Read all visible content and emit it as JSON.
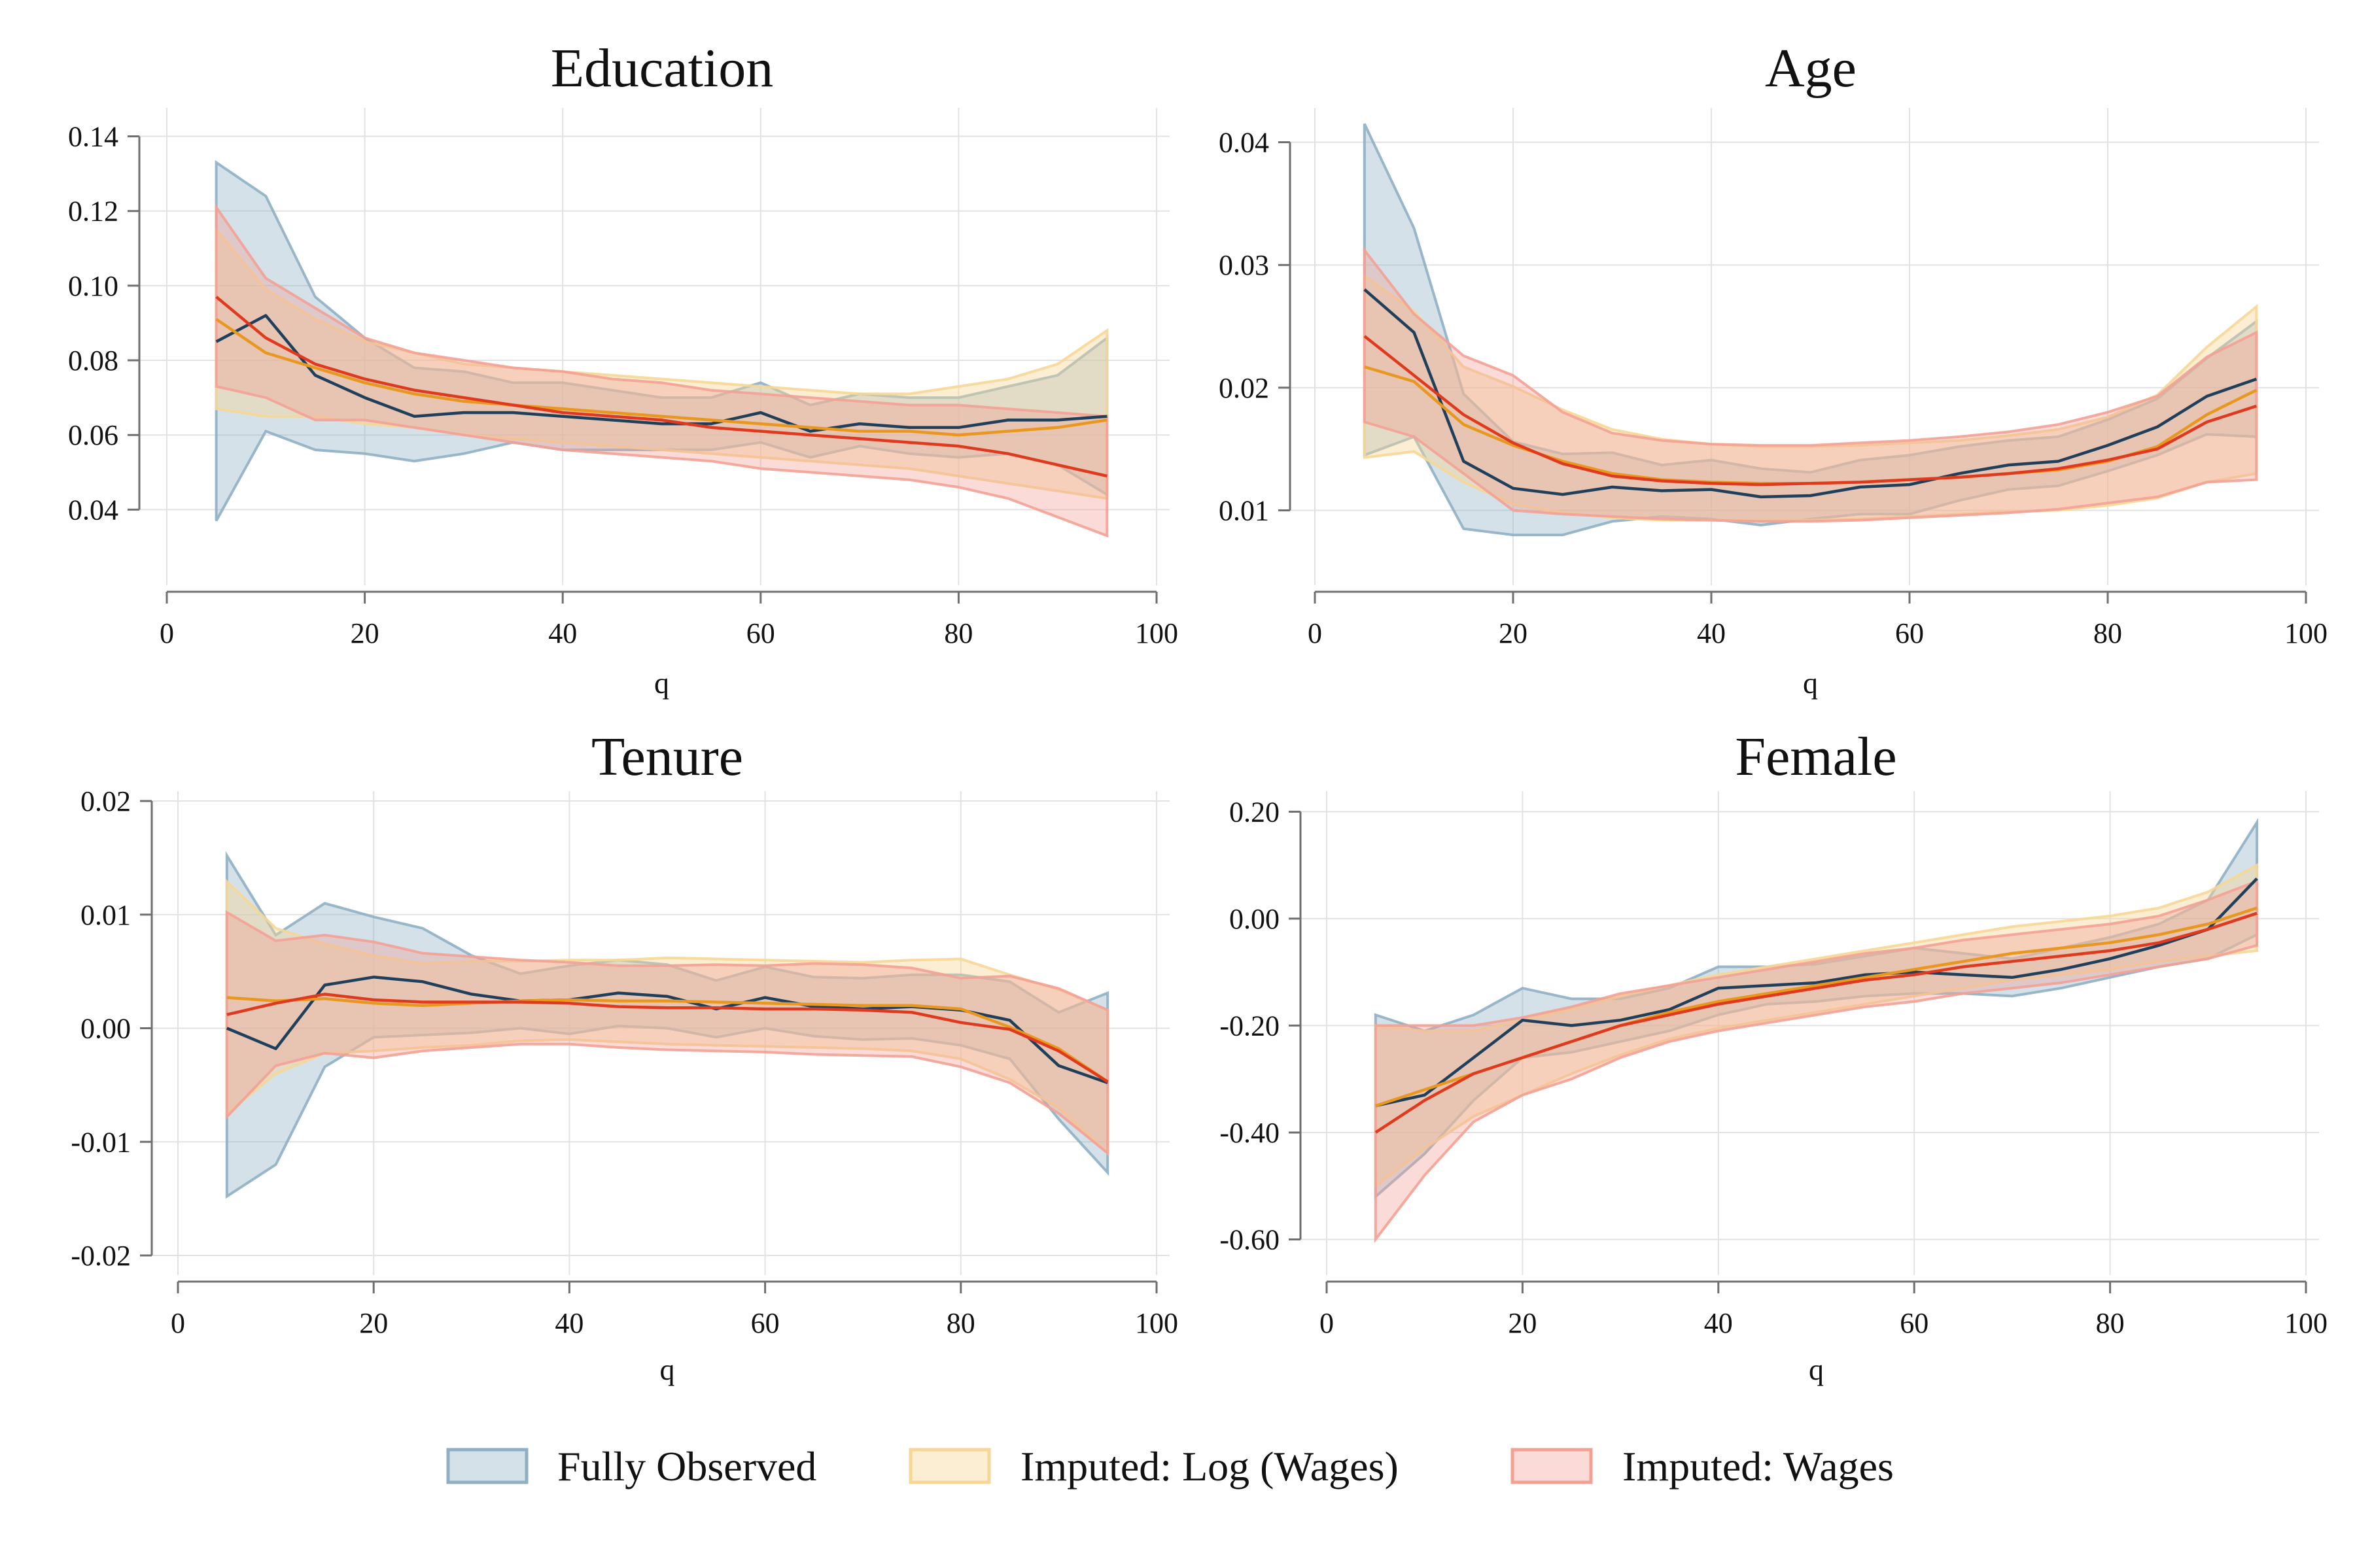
{
  "colors": {
    "fully_observed_line": "#1f3f5a",
    "fully_observed_band": "#8fb0c4",
    "imputed_log_line": "#e8981f",
    "imputed_log_band": "#f6d796",
    "imputed_wages_line": "#e03a1e",
    "imputed_wages_band": "#f3a195",
    "grid": "#e2e2e2",
    "axis": "#6f6f6f"
  },
  "legend": {
    "position": "bottom-center",
    "items": [
      {
        "label": "Fully Observed",
        "key": "fully_observed"
      },
      {
        "label": "Imputed: Log (Wages)",
        "key": "imputed_log"
      },
      {
        "label": "Imputed: Wages",
        "key": "imputed_wages"
      }
    ]
  },
  "chart_data": [
    {
      "type": "line",
      "title": "Education",
      "xlabel": "q",
      "ylabel": "",
      "xlim": [
        0,
        100
      ],
      "ylim": [
        0.025,
        0.145
      ],
      "xticks": [
        "0",
        "20",
        "40",
        "60",
        "80",
        "100"
      ],
      "yticks": [
        "0.04",
        "0.06",
        "0.08",
        "0.10",
        "0.12",
        "0.14"
      ],
      "grid": true,
      "x": [
        5,
        10,
        15,
        20,
        25,
        30,
        35,
        40,
        45,
        50,
        55,
        60,
        65,
        70,
        75,
        80,
        85,
        90,
        95
      ],
      "series": [
        {
          "key": "fully_observed",
          "name": "Fully Observed",
          "values": [
            0.085,
            0.092,
            0.076,
            0.07,
            0.065,
            0.066,
            0.066,
            0.065,
            0.064,
            0.063,
            0.063,
            0.066,
            0.061,
            0.063,
            0.062,
            0.062,
            0.064,
            0.064,
            0.065
          ],
          "lower": [
            0.037,
            0.061,
            0.056,
            0.055,
            0.053,
            0.055,
            0.058,
            0.056,
            0.056,
            0.056,
            0.056,
            0.058,
            0.054,
            0.057,
            0.055,
            0.054,
            0.055,
            0.052,
            0.044
          ],
          "upper": [
            0.133,
            0.124,
            0.097,
            0.086,
            0.078,
            0.077,
            0.074,
            0.074,
            0.072,
            0.07,
            0.07,
            0.074,
            0.068,
            0.071,
            0.07,
            0.07,
            0.073,
            0.076,
            0.086
          ]
        },
        {
          "key": "imputed_log",
          "name": "Imputed: Log (Wages)",
          "values": [
            0.091,
            0.082,
            0.078,
            0.074,
            0.071,
            0.069,
            0.068,
            0.067,
            0.066,
            0.065,
            0.064,
            0.063,
            0.062,
            0.061,
            0.061,
            0.06,
            0.061,
            0.062,
            0.064
          ],
          "lower": [
            0.067,
            0.065,
            0.065,
            0.063,
            0.062,
            0.06,
            0.059,
            0.058,
            0.057,
            0.056,
            0.055,
            0.054,
            0.053,
            0.052,
            0.051,
            0.049,
            0.047,
            0.045,
            0.043
          ],
          "upper": [
            0.115,
            0.099,
            0.091,
            0.085,
            0.082,
            0.079,
            0.078,
            0.077,
            0.076,
            0.075,
            0.074,
            0.073,
            0.072,
            0.071,
            0.071,
            0.073,
            0.075,
            0.079,
            0.088
          ]
        },
        {
          "key": "imputed_wages",
          "name": "Imputed: Wages",
          "values": [
            0.097,
            0.086,
            0.079,
            0.075,
            0.072,
            0.07,
            0.068,
            0.066,
            0.065,
            0.064,
            0.062,
            0.061,
            0.06,
            0.059,
            0.058,
            0.057,
            0.055,
            0.052,
            0.049
          ],
          "lower": [
            0.073,
            0.07,
            0.064,
            0.064,
            0.062,
            0.06,
            0.058,
            0.056,
            0.055,
            0.054,
            0.053,
            0.051,
            0.05,
            0.049,
            0.048,
            0.046,
            0.043,
            0.038,
            0.033
          ],
          "upper": [
            0.121,
            0.102,
            0.094,
            0.086,
            0.082,
            0.08,
            0.078,
            0.077,
            0.075,
            0.074,
            0.072,
            0.071,
            0.07,
            0.069,
            0.068,
            0.068,
            0.067,
            0.066,
            0.065
          ]
        }
      ]
    },
    {
      "type": "line",
      "title": "Age",
      "xlabel": "q",
      "ylabel": "",
      "xlim": [
        0,
        100
      ],
      "ylim": [
        0.0055,
        0.042
      ],
      "xticks": [
        "0",
        "20",
        "40",
        "60",
        "80",
        "100"
      ],
      "yticks": [
        "0.01",
        "0.02",
        "0.03",
        "0.04"
      ],
      "grid": true,
      "x": [
        5,
        10,
        15,
        20,
        25,
        30,
        35,
        40,
        45,
        50,
        55,
        60,
        65,
        70,
        75,
        80,
        85,
        90,
        95
      ],
      "series": [
        {
          "key": "fully_observed",
          "name": "Fully Observed",
          "values": [
            0.028,
            0.0245,
            0.014,
            0.0118,
            0.0113,
            0.0119,
            0.0116,
            0.0117,
            0.0111,
            0.0112,
            0.0119,
            0.0121,
            0.013,
            0.0137,
            0.014,
            0.0153,
            0.0168,
            0.0193,
            0.0207
          ],
          "lower": [
            0.0145,
            0.016,
            0.0085,
            0.008,
            0.008,
            0.0091,
            0.0095,
            0.0093,
            0.0088,
            0.0093,
            0.0097,
            0.0097,
            0.0108,
            0.0117,
            0.012,
            0.0132,
            0.0145,
            0.0162,
            0.016
          ],
          "upper": [
            0.0415,
            0.033,
            0.0195,
            0.0156,
            0.0146,
            0.0147,
            0.0137,
            0.0141,
            0.0134,
            0.0131,
            0.0141,
            0.0145,
            0.0152,
            0.0157,
            0.016,
            0.0174,
            0.0191,
            0.0224,
            0.0254
          ]
        },
        {
          "key": "imputed_log",
          "name": "Imputed: Log (Wages)",
          "values": [
            0.0217,
            0.0205,
            0.017,
            0.0153,
            0.014,
            0.013,
            0.0125,
            0.0123,
            0.0122,
            0.0122,
            0.0123,
            0.0125,
            0.0127,
            0.013,
            0.0133,
            0.014,
            0.0152,
            0.0178,
            0.0198
          ],
          "lower": [
            0.0143,
            0.0148,
            0.0123,
            0.0105,
            0.0098,
            0.0094,
            0.0092,
            0.0092,
            0.0092,
            0.0092,
            0.0093,
            0.0095,
            0.0097,
            0.0099,
            0.01,
            0.0104,
            0.011,
            0.0123,
            0.013
          ],
          "upper": [
            0.0291,
            0.0262,
            0.0217,
            0.0201,
            0.0182,
            0.0166,
            0.0158,
            0.0154,
            0.0152,
            0.0152,
            0.0153,
            0.0155,
            0.0157,
            0.0161,
            0.0166,
            0.0176,
            0.0194,
            0.0233,
            0.0266
          ]
        },
        {
          "key": "imputed_wages",
          "name": "Imputed: Wages",
          "values": [
            0.0242,
            0.021,
            0.0178,
            0.0155,
            0.0138,
            0.0128,
            0.0124,
            0.0122,
            0.0121,
            0.0122,
            0.0123,
            0.0125,
            0.0127,
            0.013,
            0.0134,
            0.0141,
            0.015,
            0.0172,
            0.0185
          ],
          "lower": [
            0.0172,
            0.016,
            0.013,
            0.01,
            0.0097,
            0.0095,
            0.0093,
            0.0092,
            0.0091,
            0.0091,
            0.0092,
            0.0094,
            0.0096,
            0.0098,
            0.0101,
            0.0106,
            0.0111,
            0.0123,
            0.0125
          ],
          "upper": [
            0.0312,
            0.026,
            0.0226,
            0.021,
            0.018,
            0.0163,
            0.0157,
            0.0154,
            0.0153,
            0.0153,
            0.0155,
            0.0157,
            0.016,
            0.0164,
            0.017,
            0.018,
            0.0193,
            0.0225,
            0.0245
          ]
        }
      ]
    },
    {
      "type": "line",
      "title": "Tenure",
      "xlabel": "q",
      "ylabel": "",
      "xlim": [
        0,
        100
      ],
      "ylim": [
        -0.02,
        0.02
      ],
      "xticks": [
        "0",
        "20",
        "40",
        "60",
        "80",
        "100"
      ],
      "yticks": [
        "-0.02",
        "-0.01",
        "0.00",
        "0.01",
        "0.02"
      ],
      "grid": true,
      "x": [
        5,
        10,
        15,
        20,
        25,
        30,
        35,
        40,
        45,
        50,
        55,
        60,
        65,
        70,
        75,
        80,
        85,
        90,
        95
      ],
      "series": [
        {
          "key": "fully_observed",
          "name": "Fully Observed",
          "values": [
            0.0,
            -0.0018,
            0.0038,
            0.0045,
            0.0041,
            0.003,
            0.0024,
            0.0025,
            0.0031,
            0.0028,
            0.0017,
            0.0027,
            0.0019,
            0.0017,
            0.0019,
            0.0016,
            0.0007,
            -0.0033,
            -0.0048
          ],
          "lower": [
            -0.0148,
            -0.012,
            -0.0034,
            -0.0008,
            -0.0006,
            -0.0004,
            0.0,
            -0.0005,
            0.0002,
            0.0,
            -0.0008,
            0.0,
            -0.0007,
            -0.001,
            -0.0009,
            -0.0015,
            -0.0027,
            -0.008,
            -0.0127
          ],
          "upper": [
            0.0152,
            0.0082,
            0.011,
            0.0098,
            0.0088,
            0.0064,
            0.0048,
            0.0055,
            0.006,
            0.0056,
            0.0042,
            0.0054,
            0.0045,
            0.0044,
            0.0047,
            0.0047,
            0.0041,
            0.0014,
            0.0031
          ]
        },
        {
          "key": "imputed_log",
          "name": "Imputed: Log (Wages)",
          "values": [
            0.0027,
            0.0024,
            0.0026,
            0.0022,
            0.002,
            0.0022,
            0.0024,
            0.0025,
            0.0024,
            0.0024,
            0.0023,
            0.0022,
            0.0021,
            0.002,
            0.002,
            0.0017,
            0.0001,
            -0.0018,
            -0.0047
          ],
          "lower": [
            -0.0075,
            -0.004,
            -0.0022,
            -0.002,
            -0.0017,
            -0.0015,
            -0.0011,
            -0.001,
            -0.0012,
            -0.0014,
            -0.0015,
            -0.0016,
            -0.0017,
            -0.0018,
            -0.002,
            -0.0027,
            -0.0045,
            -0.007,
            -0.011
          ],
          "upper": [
            0.0129,
            0.0088,
            0.0074,
            0.0064,
            0.0057,
            0.0059,
            0.0059,
            0.006,
            0.006,
            0.0062,
            0.0061,
            0.006,
            0.0059,
            0.0058,
            0.006,
            0.0061,
            0.0047,
            0.0034,
            0.0016
          ]
        },
        {
          "key": "imputed_wages",
          "name": "Imputed: Wages",
          "values": [
            0.0012,
            0.0022,
            0.003,
            0.0025,
            0.0023,
            0.0023,
            0.0023,
            0.0022,
            0.0019,
            0.0018,
            0.0018,
            0.0017,
            0.0017,
            0.0016,
            0.0014,
            0.0005,
            -0.0001,
            -0.002,
            -0.0047
          ],
          "lower": [
            -0.0078,
            -0.0033,
            -0.0022,
            -0.0026,
            -0.002,
            -0.0017,
            -0.0014,
            -0.0014,
            -0.0017,
            -0.0019,
            -0.002,
            -0.0021,
            -0.0023,
            -0.0024,
            -0.0025,
            -0.0034,
            -0.0048,
            -0.0075,
            -0.011
          ],
          "upper": [
            0.0102,
            0.0077,
            0.0082,
            0.0076,
            0.0066,
            0.0063,
            0.006,
            0.0058,
            0.0055,
            0.0055,
            0.0056,
            0.0055,
            0.0057,
            0.0056,
            0.0053,
            0.0044,
            0.0046,
            0.0035,
            0.0016
          ]
        }
      ]
    },
    {
      "type": "line",
      "title": "Female",
      "xlabel": "q",
      "ylabel": "",
      "xlim": [
        0,
        100
      ],
      "ylim": [
        -0.63,
        0.22
      ],
      "xticks": [
        "0",
        "20",
        "40",
        "60",
        "80",
        "100"
      ],
      "yticks": [
        "-0.60",
        "-0.40",
        "-0.20",
        "0.00",
        "0.20"
      ],
      "grid": true,
      "x": [
        5,
        10,
        15,
        20,
        25,
        30,
        35,
        40,
        45,
        50,
        55,
        60,
        65,
        70,
        75,
        80,
        85,
        90,
        95
      ],
      "series": [
        {
          "key": "fully_observed",
          "name": "Fully Observed",
          "values": [
            -0.35,
            -0.33,
            -0.26,
            -0.19,
            -0.2,
            -0.19,
            -0.17,
            -0.13,
            -0.125,
            -0.12,
            -0.105,
            -0.1,
            -0.105,
            -0.11,
            -0.095,
            -0.075,
            -0.05,
            -0.02,
            0.075
          ],
          "lower": [
            -0.52,
            -0.44,
            -0.34,
            -0.26,
            -0.25,
            -0.23,
            -0.21,
            -0.18,
            -0.16,
            -0.155,
            -0.145,
            -0.14,
            -0.14,
            -0.145,
            -0.13,
            -0.11,
            -0.09,
            -0.075,
            -0.03
          ],
          "upper": [
            -0.18,
            -0.21,
            -0.18,
            -0.13,
            -0.15,
            -0.15,
            -0.13,
            -0.09,
            -0.09,
            -0.085,
            -0.07,
            -0.055,
            -0.065,
            -0.075,
            -0.055,
            -0.035,
            -0.01,
            0.035,
            0.18
          ]
        },
        {
          "key": "imputed_log",
          "name": "Imputed: Log (Wages)",
          "values": [
            -0.35,
            -0.32,
            -0.29,
            -0.26,
            -0.23,
            -0.2,
            -0.175,
            -0.155,
            -0.14,
            -0.125,
            -0.11,
            -0.095,
            -0.08,
            -0.065,
            -0.055,
            -0.045,
            -0.03,
            -0.01,
            0.02
          ],
          "lower": [
            -0.5,
            -0.43,
            -0.37,
            -0.33,
            -0.29,
            -0.255,
            -0.225,
            -0.205,
            -0.19,
            -0.175,
            -0.16,
            -0.145,
            -0.13,
            -0.115,
            -0.105,
            -0.095,
            -0.08,
            -0.07,
            -0.06
          ],
          "upper": [
            -0.2,
            -0.21,
            -0.21,
            -0.19,
            -0.17,
            -0.145,
            -0.125,
            -0.105,
            -0.09,
            -0.075,
            -0.06,
            -0.045,
            -0.03,
            -0.015,
            -0.005,
            0.005,
            0.02,
            0.05,
            0.1
          ]
        },
        {
          "key": "imputed_wages",
          "name": "Imputed: Wages",
          "values": [
            -0.4,
            -0.34,
            -0.29,
            -0.26,
            -0.23,
            -0.2,
            -0.18,
            -0.16,
            -0.145,
            -0.13,
            -0.115,
            -0.105,
            -0.09,
            -0.08,
            -0.07,
            -0.06,
            -0.045,
            -0.02,
            0.01
          ],
          "lower": [
            -0.6,
            -0.48,
            -0.38,
            -0.33,
            -0.3,
            -0.26,
            -0.23,
            -0.21,
            -0.195,
            -0.18,
            -0.165,
            -0.155,
            -0.14,
            -0.13,
            -0.12,
            -0.105,
            -0.09,
            -0.075,
            -0.05
          ],
          "upper": [
            -0.2,
            -0.2,
            -0.2,
            -0.185,
            -0.165,
            -0.14,
            -0.125,
            -0.11,
            -0.095,
            -0.08,
            -0.065,
            -0.055,
            -0.04,
            -0.03,
            -0.02,
            -0.01,
            0.005,
            0.035,
            0.07
          ]
        }
      ]
    }
  ]
}
